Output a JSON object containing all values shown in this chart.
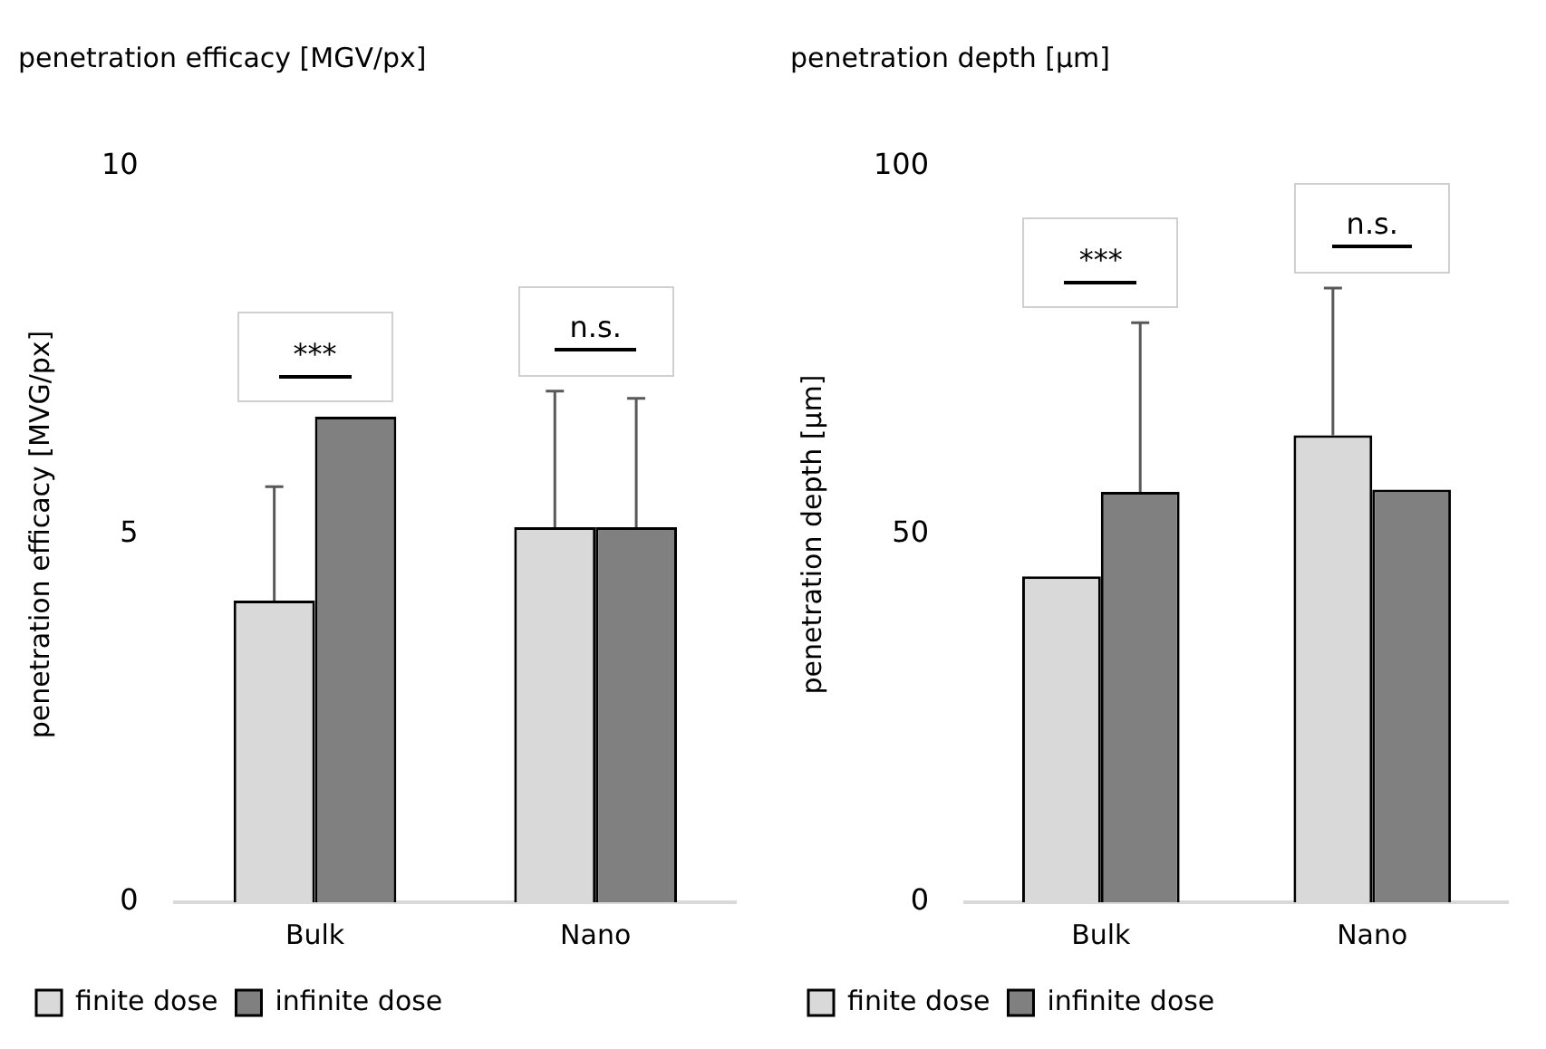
{
  "chart_data": [
    {
      "type": "bar",
      "title": "penetration efficacy [MGV/px]",
      "ylabel": "penetration efficacy [MVG/px]",
      "categories": [
        "Bulk",
        "Nano"
      ],
      "series": [
        {
          "name": "finite dose",
          "color": "#d9d9d9",
          "values": [
            4.1,
            5.1
          ],
          "errors": [
            1.55,
            1.85
          ]
        },
        {
          "name": "infinite dose",
          "color": "#808080",
          "values": [
            6.6,
            5.1
          ],
          "errors": [
            null,
            1.75
          ]
        }
      ],
      "ylim": [
        0,
        10
      ],
      "yticks": [
        0,
        5,
        10
      ],
      "grid": false,
      "legend": "bottom",
      "annotations": [
        "***",
        "n.s."
      ]
    },
    {
      "type": "bar",
      "title": "penetration depth [µm]",
      "ylabel": "penetration depth [µm]",
      "categories": [
        "Bulk",
        "Nano"
      ],
      "series": [
        {
          "name": "finite dose",
          "color": "#d9d9d9",
          "values": [
            44.3,
            63.5
          ],
          "errors": [
            null,
            20
          ]
        },
        {
          "name": "infinite dose",
          "color": "#808080",
          "values": [
            55.8,
            56.1
          ],
          "errors": [
            23,
            null
          ]
        }
      ],
      "ylim": [
        0,
        100
      ],
      "yticks": [
        0,
        50,
        100
      ],
      "grid": false,
      "legend": "bottom",
      "annotations": [
        "***",
        "n.s."
      ]
    }
  ]
}
